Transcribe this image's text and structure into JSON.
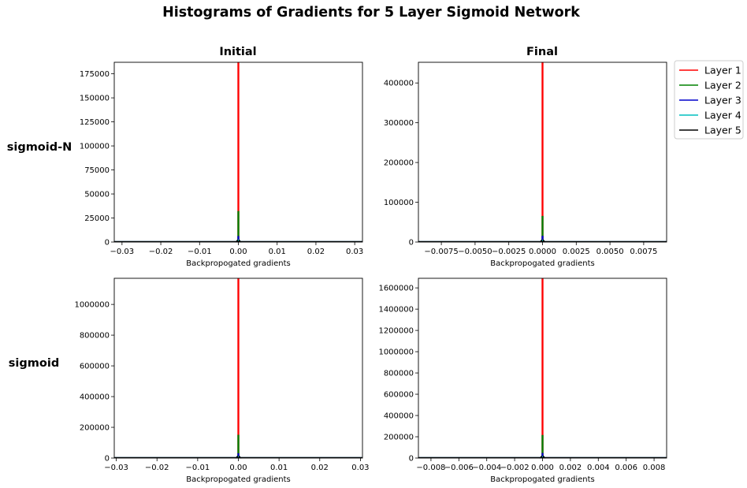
{
  "figure": {
    "title": "Histograms of Gradients for 5 Layer Sigmoid Network",
    "col_titles": [
      "Initial",
      "Final"
    ],
    "row_labels": [
      "sigmoid-N",
      "sigmoid"
    ]
  },
  "legend": {
    "placement": "top-right outside",
    "entries": [
      {
        "label": "Layer 1",
        "color": "#ff0000"
      },
      {
        "label": "Layer 2",
        "color": "#008000"
      },
      {
        "label": "Layer 3",
        "color": "#0000cc"
      },
      {
        "label": "Layer 4",
        "color": "#00bfbf"
      },
      {
        "label": "Layer 5",
        "color": "#000000"
      }
    ]
  },
  "chart_data": [
    {
      "type": "histogram",
      "row": "sigmoid-N",
      "col": "Initial",
      "xlabel": "Backpropogated gradients",
      "xlim": [
        -0.032,
        0.032
      ],
      "ylim": [
        0,
        187000
      ],
      "xticks": [
        -0.03,
        -0.02,
        -0.01,
        0.0,
        0.01,
        0.02,
        0.03
      ],
      "xtick_labels": [
        "−0.03",
        "−0.02",
        "−0.01",
        "0.00",
        "0.01",
        "0.02",
        "0.03"
      ],
      "yticks": [
        0,
        25000,
        50000,
        75000,
        100000,
        125000,
        150000,
        175000
      ],
      "ytick_labels": [
        "0",
        "25000",
        "50000",
        "75000",
        "100000",
        "125000",
        "150000",
        "175000"
      ],
      "series": [
        {
          "name": "Layer 1",
          "peak_x": 0.0,
          "peak_y": 187000
        },
        {
          "name": "Layer 2",
          "peak_x": 0.0,
          "peak_y": 32000
        },
        {
          "name": "Layer 3",
          "peak_x": 0.0,
          "peak_y": 6000
        },
        {
          "name": "Layer 4",
          "peak_x": 0.0,
          "peak_y": 2500
        },
        {
          "name": "Layer 5",
          "peak_x": 0.0,
          "peak_y": 1000
        }
      ]
    },
    {
      "type": "histogram",
      "row": "sigmoid-N",
      "col": "Final",
      "xlabel": "Backpropogated gradients",
      "xlim": [
        -0.0092,
        0.0092
      ],
      "ylim": [
        0,
        452000
      ],
      "xticks": [
        -0.0075,
        -0.005,
        -0.0025,
        0.0,
        0.0025,
        0.005,
        0.0075
      ],
      "xtick_labels": [
        "−0.0075",
        "−0.0050",
        "−0.0025",
        "0.0000",
        "0.0025",
        "0.0050",
        "0.0075"
      ],
      "yticks": [
        0,
        100000,
        200000,
        300000,
        400000
      ],
      "ytick_labels": [
        "0",
        "100000",
        "200000",
        "300000",
        "400000"
      ],
      "series": [
        {
          "name": "Layer 1",
          "peak_x": 0.0,
          "peak_y": 452000
        },
        {
          "name": "Layer 2",
          "peak_x": 0.0,
          "peak_y": 65000
        },
        {
          "name": "Layer 3",
          "peak_x": 0.0,
          "peak_y": 15000
        },
        {
          "name": "Layer 4",
          "peak_x": 0.0,
          "peak_y": 5000
        },
        {
          "name": "Layer 5",
          "peak_x": 0.0,
          "peak_y": 2000
        }
      ]
    },
    {
      "type": "histogram",
      "row": "sigmoid",
      "col": "Initial",
      "xlabel": "Backpropogated gradients",
      "xlim": [
        -0.0305,
        0.0305
      ],
      "ylim": [
        0,
        1170000
      ],
      "xticks": [
        -0.03,
        -0.02,
        -0.01,
        0.0,
        0.01,
        0.02,
        0.03
      ],
      "xtick_labels": [
        "−0.03",
        "−0.02",
        "−0.01",
        "0.00",
        "0.01",
        "0.02",
        "0.03"
      ],
      "yticks": [
        0,
        200000,
        400000,
        600000,
        800000,
        1000000
      ],
      "ytick_labels": [
        "0",
        "200000",
        "400000",
        "600000",
        "800000",
        "1000000"
      ],
      "series": [
        {
          "name": "Layer 1",
          "peak_x": 0.0,
          "peak_y": 1170000
        },
        {
          "name": "Layer 2",
          "peak_x": 0.0,
          "peak_y": 150000
        },
        {
          "name": "Layer 3",
          "peak_x": 0.0,
          "peak_y": 30000
        },
        {
          "name": "Layer 4",
          "peak_x": 0.0,
          "peak_y": 10000
        },
        {
          "name": "Layer 5",
          "peak_x": 0.0,
          "peak_y": 4000
        }
      ]
    },
    {
      "type": "histogram",
      "row": "sigmoid",
      "col": "Final",
      "xlabel": "Backpropogated gradients",
      "xlim": [
        -0.0089,
        0.0089
      ],
      "ylim": [
        0,
        1690000
      ],
      "xticks": [
        -0.008,
        -0.006,
        -0.004,
        -0.002,
        0.0,
        0.002,
        0.004,
        0.006,
        0.008
      ],
      "xtick_labels": [
        "−0.008",
        "−0.006",
        "−0.004",
        "−0.002",
        "0.000",
        "0.002",
        "0.004",
        "0.006",
        "0.008"
      ],
      "yticks": [
        0,
        200000,
        400000,
        600000,
        800000,
        1000000,
        1200000,
        1400000,
        1600000
      ],
      "ytick_labels": [
        "0",
        "200000",
        "400000",
        "600000",
        "800000",
        "1000000",
        "1200000",
        "1400000",
        "1600000"
      ],
      "series": [
        {
          "name": "Layer 1",
          "peak_x": 0.0,
          "peak_y": 1690000
        },
        {
          "name": "Layer 2",
          "peak_x": 0.0,
          "peak_y": 215000
        },
        {
          "name": "Layer 3",
          "peak_x": 0.0,
          "peak_y": 45000
        },
        {
          "name": "Layer 4",
          "peak_x": 0.0,
          "peak_y": 15000
        },
        {
          "name": "Layer 5",
          "peak_x": 0.0,
          "peak_y": 5000
        }
      ]
    }
  ]
}
